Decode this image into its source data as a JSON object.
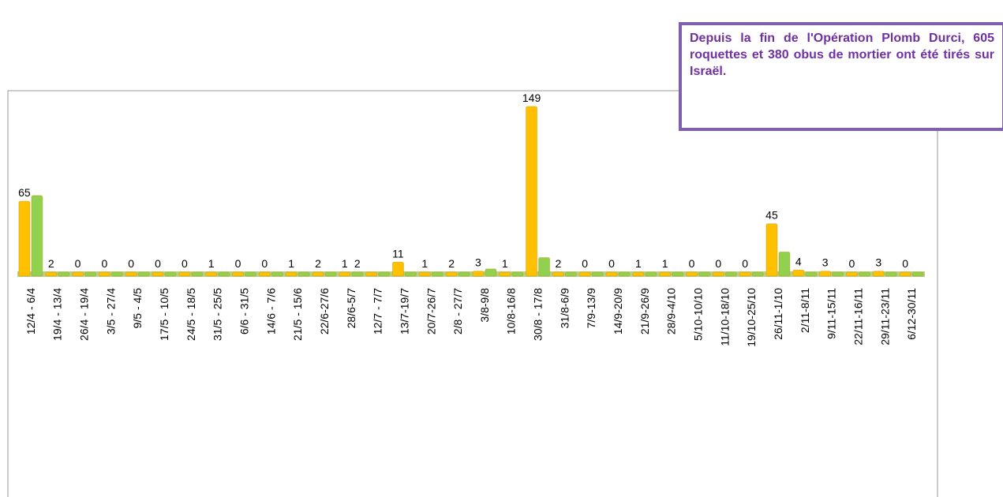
{
  "chart_data": {
    "type": "bar",
    "annotation": "Depuis la fin de l'Opération Plomb Durci, 605 roquettes et 380 obus de mortier ont été tirés sur Israël.",
    "categories": [
      "12/4 - 6/4",
      "19/4 - 13/4",
      "26/4 - 19/4",
      "3/5 - 27/4",
      "9/5 - 4/5",
      "17/5 - 10/5",
      "24/5 - 18/5",
      "31/5 - 25/5",
      "6/6 - 31/5",
      "14/6 - 7/6",
      "21/5 - 15/6",
      "22/6-27/6",
      "28/6-5/7",
      "12/7 - 7/7",
      "13/7-19/7",
      "20/7-26/7",
      "2/8 - 27/7",
      "3/8-9/8",
      "10/8-16/8",
      "30/8 - 17/8",
      "31/8-6/9",
      "7/9-13/9",
      "14/9-20/9",
      "21/9-26/9",
      "28/9-4/10",
      "5/10-10/10",
      "11/10-18/10",
      "19/10-25/10",
      "26/11-1/10",
      "2/11-8/11",
      "9/11-15/11",
      "22/11-16/11",
      "29/11-23/11",
      "6/12-30/11"
    ],
    "series": [
      {
        "color": "#ffc000",
        "values": [
          65,
          2,
          0,
          0,
          0,
          0,
          0,
          1,
          0,
          0,
          1,
          2,
          1,
          1,
          11,
          1,
          2,
          3,
          1,
          149,
          2,
          0,
          0,
          1,
          1,
          0,
          0,
          0,
          45,
          4,
          3,
          0,
          3,
          0
        ],
        "value_labels": [
          "65",
          "2",
          "0",
          "0",
          "0",
          "0",
          "0",
          "1",
          "0",
          "0",
          "1",
          "2",
          "1",
          null,
          "11",
          "1",
          "2",
          "3",
          "1",
          "149",
          "2",
          "0",
          "0",
          "1",
          "1",
          "0",
          "0",
          "0",
          "45",
          "4",
          "3",
          "0",
          "3",
          "0"
        ]
      },
      {
        "color": "#92d050",
        "values": [
          70,
          0,
          0,
          0,
          0,
          0,
          0,
          0,
          0,
          0,
          0,
          0,
          2,
          1,
          1,
          0,
          0,
          5,
          0,
          15,
          0,
          0,
          0,
          0,
          1,
          0,
          0,
          0,
          20,
          1,
          0,
          1,
          0,
          0
        ],
        "value_labels": [
          null,
          null,
          null,
          null,
          null,
          null,
          null,
          null,
          null,
          null,
          null,
          null,
          "2",
          null,
          null,
          null,
          null,
          null,
          null,
          null,
          null,
          null,
          null,
          null,
          null,
          null,
          null,
          null,
          null,
          null,
          null,
          null,
          null,
          null
        ]
      }
    ]
  }
}
